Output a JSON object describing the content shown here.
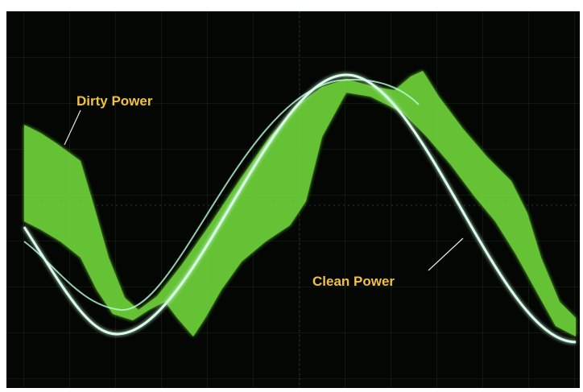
{
  "labels": {
    "dirty": "Dirty Power",
    "clean": "Clean Power"
  }
}
